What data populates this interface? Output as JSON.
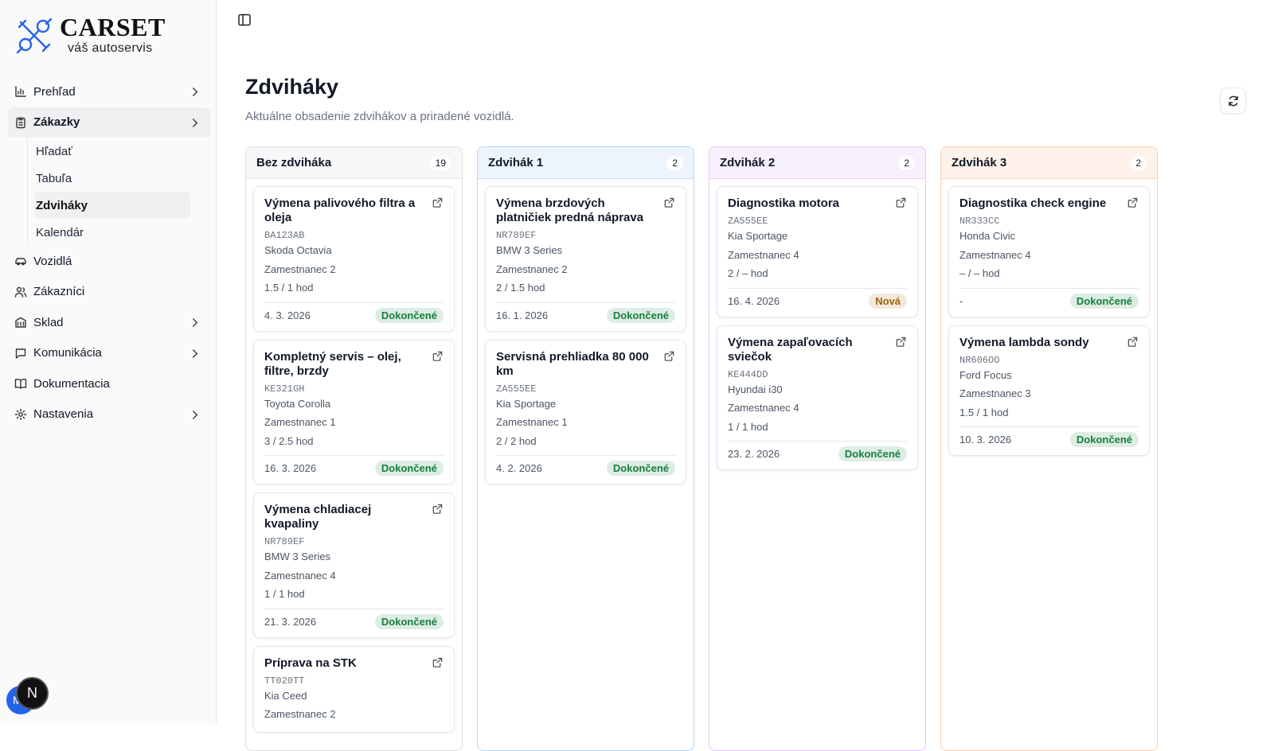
{
  "sidebar": {
    "brand": "CARSET",
    "tagline": "váš autoservis",
    "nav": [
      {
        "label": "Prehľad",
        "has_children": true
      },
      {
        "label": "Zákazky",
        "has_children": true,
        "active": true,
        "children": [
          {
            "label": "Hľadať"
          },
          {
            "label": "Tabuľa"
          },
          {
            "label": "Zdviháky",
            "active": true
          },
          {
            "label": "Kalendár"
          }
        ]
      },
      {
        "label": "Vozidlá"
      },
      {
        "label": "Zákazníci"
      },
      {
        "label": "Sklad",
        "has_children": true
      },
      {
        "label": "Komunikácia",
        "has_children": true
      },
      {
        "label": "Dokumentacia"
      },
      {
        "label": "Nastavenia",
        "has_children": true
      }
    ],
    "avatar": "M",
    "dev_badge": "N"
  },
  "header": {
    "title": "Zdviháky",
    "subtitle": "Aktuálne obsadenie zdvihákov a priradené vozidlá."
  },
  "columns": [
    {
      "title": "Bez zdviháka",
      "count": 19,
      "color": "#9ca3af",
      "cards": [
        {
          "title": "Výmena palivového filtra a oleja",
          "plate": "BA123AB",
          "car": "Skoda Octavia",
          "employee": "Zamestnanec 2",
          "hours": "1.5 / 1 hod",
          "date": "4. 3. 2026",
          "status": "Dokončené",
          "status_color": "#15803d"
        },
        {
          "title": "Kompletný servis – olej, filtre, brzdy",
          "plate": "KE321GH",
          "car": "Toyota Corolla",
          "employee": "Zamestnanec 1",
          "hours": "3 / 2.5 hod",
          "date": "16. 3. 2026",
          "status": "Dokončené",
          "status_color": "#15803d"
        },
        {
          "title": "Výmena chladiacej kvapaliny",
          "plate": "NR789EF",
          "car": "BMW 3 Series",
          "employee": "Zamestnanec 4",
          "hours": "1 / 1 hod",
          "date": "21. 3. 2026",
          "status": "Dokončené",
          "status_color": "#15803d"
        },
        {
          "title": "Príprava na STK",
          "plate": "TT020TT",
          "car": "Kia Ceed",
          "employee": "Zamestnanec 2"
        }
      ]
    },
    {
      "title": "Zdvihák 1",
      "count": 2,
      "color": "#3b82f6",
      "cards": [
        {
          "title": "Výmena brzdových platničiek predná náprava",
          "plate": "NR789EF",
          "car": "BMW 3 Series",
          "employee": "Zamestnanec 2",
          "hours": "2 / 1.5 hod",
          "date": "16. 1. 2026",
          "status": "Dokončené",
          "status_color": "#15803d"
        },
        {
          "title": "Servisná prehliadka 80 000 km",
          "plate": "ZA555EE",
          "car": "Kia Sportage",
          "employee": "Zamestnanec 1",
          "hours": "2 / 2 hod",
          "date": "4. 2. 2026",
          "status": "Dokončené",
          "status_color": "#15803d"
        }
      ]
    },
    {
      "title": "Zdvihák 2",
      "count": 2,
      "color": "#a855f7",
      "cards": [
        {
          "title": "Diagnostika motora",
          "plate": "ZA555EE",
          "car": "Kia Sportage",
          "employee": "Zamestnanec 4",
          "hours": "2 / – hod",
          "date": "16. 4. 2026",
          "status": "Nová",
          "status_color": "#a16207"
        },
        {
          "title": "Výmena zapaľovacích sviečok",
          "plate": "KE444DD",
          "car": "Hyundai i30",
          "employee": "Zamestnanec 4",
          "hours": "1 / 1 hod",
          "date": "23. 2. 2026",
          "status": "Dokončené",
          "status_color": "#15803d"
        }
      ]
    },
    {
      "title": "Zdvihák 3",
      "count": 2,
      "color": "#f97316",
      "cards": [
        {
          "title": "Diagnostika check engine",
          "plate": "NR333CC",
          "car": "Honda Civic",
          "employee": "Zamestnanec 4",
          "hours": "– / – hod",
          "date": "-",
          "status": "Dokončené",
          "status_color": "#15803d"
        },
        {
          "title": "Výmena lambda sondy",
          "plate": "NR606OO",
          "car": "Ford Focus",
          "employee": "Zamestnanec 3",
          "hours": "1.5 / 1 hod",
          "date": "10. 3. 2026",
          "status": "Dokončené",
          "status_color": "#15803d"
        }
      ]
    }
  ]
}
